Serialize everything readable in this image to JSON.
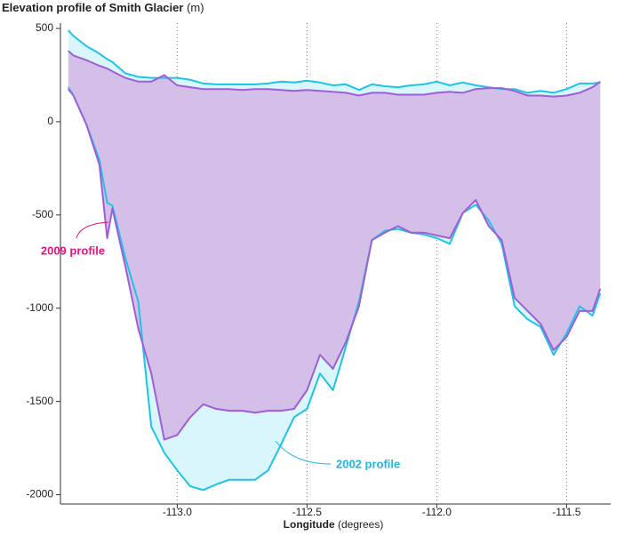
{
  "chart_data": {
    "type": "profile",
    "title": "Elevation profile of Smith Glacier",
    "y_unit": "(m)",
    "x_label": "Longitude",
    "x_unit": "(degrees)",
    "xlim": [
      -113.45,
      -111.33
    ],
    "ylim": [
      -2050,
      500
    ],
    "xticks": [
      {
        "value": -113.0,
        "label": "-113.0"
      },
      -112.5,
      {
        "value": -112.0,
        "label": "-112.0"
      },
      -111.5
    ],
    "yticks": [
      500,
      0,
      -500,
      -1000,
      -1500,
      -2000
    ],
    "grid": true,
    "x": [
      -113.42,
      -113.4,
      -113.35,
      -113.3,
      -113.27,
      -113.25,
      -113.2,
      -113.15,
      -113.1,
      -113.05,
      -113.0,
      -112.95,
      -112.9,
      -112.85,
      -112.8,
      -112.75,
      -112.7,
      -112.65,
      -112.6,
      -112.55,
      -112.5,
      -112.45,
      -112.4,
      -112.35,
      -112.3,
      -112.25,
      -112.2,
      -112.15,
      -112.1,
      -112.05,
      -112.0,
      -111.95,
      -111.9,
      -111.85,
      -111.8,
      -111.75,
      -111.7,
      -111.65,
      -111.6,
      -111.55,
      -111.5,
      -111.45,
      -111.4,
      -111.37
    ],
    "series": [
      {
        "name": "2002 profile",
        "color": "#1fc3e6",
        "fill": "#d8f6fc",
        "label_color": "#1fb6e0",
        "surface": [
          490,
          460,
          405,
          365,
          335,
          320,
          260,
          240,
          235,
          235,
          235,
          225,
          205,
          200,
          200,
          200,
          200,
          205,
          215,
          210,
          220,
          210,
          195,
          200,
          170,
          200,
          190,
          185,
          195,
          200,
          215,
          195,
          210,
          195,
          185,
          175,
          175,
          155,
          165,
          155,
          175,
          205,
          205,
          210
        ],
        "bed": [
          185,
          140,
          -15,
          -205,
          -435,
          -450,
          -730,
          -965,
          -1635,
          -1775,
          -1870,
          -1955,
          -1975,
          -1945,
          -1920,
          -1920,
          -1920,
          -1870,
          -1730,
          -1585,
          -1540,
          -1350,
          -1440,
          -1205,
          -965,
          -635,
          -585,
          -575,
          -595,
          -605,
          -625,
          -655,
          -490,
          -445,
          -530,
          -655,
          -990,
          -1060,
          -1100,
          -1250,
          -1135,
          -990,
          -1040,
          -920
        ]
      },
      {
        "name": "2009 profile",
        "color": "#a05ed6",
        "fill": "#d4bfe9",
        "label_color": "#e6157d",
        "surface": [
          380,
          355,
          330,
          300,
          285,
          270,
          235,
          215,
          215,
          250,
          195,
          185,
          175,
          175,
          175,
          170,
          175,
          175,
          170,
          165,
          170,
          165,
          160,
          155,
          140,
          155,
          155,
          145,
          145,
          145,
          155,
          160,
          155,
          175,
          180,
          180,
          165,
          140,
          140,
          135,
          140,
          155,
          185,
          215
        ],
        "bed": [
          175,
          140,
          -15,
          -230,
          -625,
          -465,
          -775,
          -1110,
          -1350,
          -1705,
          -1680,
          -1585,
          -1515,
          -1540,
          -1550,
          -1550,
          -1560,
          -1550,
          -1550,
          -1540,
          -1440,
          -1250,
          -1325,
          -1180,
          -990,
          -635,
          -595,
          -560,
          -595,
          -595,
          -610,
          -625,
          -490,
          -420,
          -560,
          -635,
          -945,
          -1015,
          -1085,
          -1225,
          -1155,
          -1015,
          -1015,
          -895
        ]
      }
    ]
  }
}
